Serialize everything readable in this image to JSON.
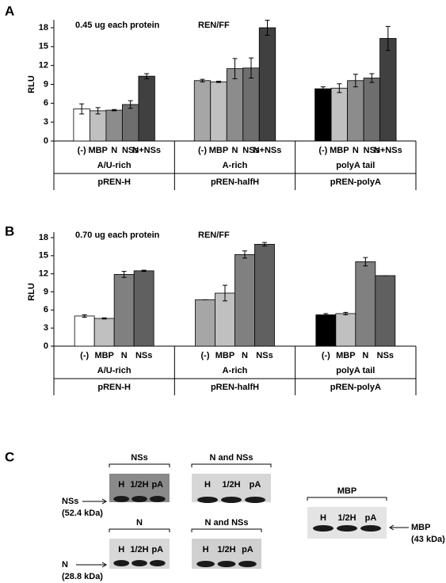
{
  "chart_data": [
    {
      "type": "bar",
      "panel": "A",
      "annotation": "0.45 ug each protein",
      "subtitle": "REN/FF",
      "y_label": "RLU",
      "ylim": [
        0,
        18
      ],
      "yticks": [
        0,
        3,
        6,
        9,
        12,
        15,
        18
      ],
      "groups": [
        {
          "name": "A/U-rich",
          "construct": "pREN-H",
          "categories": [
            "(-)",
            "MBP",
            "N",
            "NSs",
            "N+NSs"
          ],
          "values": [
            5.1,
            4.8,
            4.9,
            5.8,
            10.3
          ],
          "errors": [
            0.8,
            0.5,
            0.1,
            0.6,
            0.4
          ],
          "colors": [
            "#ffffff",
            "#c0c0c0",
            "#8c8c8c",
            "#6e6e6e",
            "#404040"
          ]
        },
        {
          "name": "A-rich",
          "construct": "pREN-halfH",
          "categories": [
            "(-)",
            "MBP",
            "N",
            "NSs",
            "N+NSs"
          ],
          "values": [
            9.6,
            9.4,
            11.5,
            11.6,
            18.0
          ],
          "errors": [
            0.2,
            0.1,
            1.6,
            1.6,
            1.2
          ],
          "colors": [
            "#a6a6a6",
            "#c0c0c0",
            "#8c8c8c",
            "#6e6e6e",
            "#404040"
          ]
        },
        {
          "name": "polyA tail",
          "construct": "pREN-polyA",
          "categories": [
            "(-)",
            "MBP",
            "N",
            "NSs",
            "N+NSs"
          ],
          "values": [
            8.3,
            8.4,
            9.6,
            10.0,
            16.3
          ],
          "errors": [
            0.3,
            0.7,
            1.0,
            0.7,
            1.9
          ],
          "colors": [
            "#000000",
            "#c0c0c0",
            "#8c8c8c",
            "#6e6e6e",
            "#404040"
          ]
        }
      ]
    },
    {
      "type": "bar",
      "panel": "B",
      "annotation": "0.70 ug each protein",
      "subtitle": "REN/FF",
      "y_label": "RLU",
      "ylim": [
        0,
        18
      ],
      "yticks": [
        0,
        3,
        6,
        9,
        12,
        15,
        18
      ],
      "groups": [
        {
          "name": "A/U-rich",
          "construct": "pREN-H",
          "categories": [
            "(-)",
            "MBP",
            "N",
            "NSs"
          ],
          "values": [
            5.0,
            4.6,
            11.9,
            12.5
          ],
          "errors": [
            0.2,
            0.1,
            0.5,
            0.1
          ],
          "colors": [
            "#ffffff",
            "#c0c0c0",
            "#808080",
            "#606060"
          ]
        },
        {
          "name": "A-rich",
          "construct": "pREN-halfH",
          "categories": [
            "(-)",
            "MBP",
            "N",
            "NSs"
          ],
          "values": [
            7.7,
            8.8,
            15.2,
            16.9
          ],
          "errors": [
            0,
            1.3,
            0.6,
            0.3
          ],
          "colors": [
            "#a6a6a6",
            "#c0c0c0",
            "#808080",
            "#606060"
          ]
        },
        {
          "name": "polyA tail",
          "construct": "pREN-polyA",
          "categories": [
            "(-)",
            "MBP",
            "N",
            "NSs"
          ],
          "values": [
            5.2,
            5.4,
            14.0,
            11.7
          ],
          "errors": [
            0.2,
            0.2,
            0.7,
            0
          ],
          "colors": [
            "#000000",
            "#c0c0c0",
            "#808080",
            "#606060"
          ]
        }
      ]
    }
  ],
  "blot_panel": {
    "panel": "C",
    "blots": [
      {
        "title": "NSs",
        "lanes": [
          "H",
          "1/2H",
          "pA"
        ]
      },
      {
        "title": "N and NSs",
        "lanes": [
          "H",
          "1/2H",
          "pA"
        ]
      },
      {
        "title": "N",
        "lanes": [
          "H",
          "1/2H",
          "pA"
        ]
      },
      {
        "title": "N and NSs",
        "lanes": [
          "H",
          "1/2H",
          "pA"
        ]
      },
      {
        "title": "MBP",
        "lanes": [
          "H",
          "1/2H",
          "pA"
        ]
      }
    ],
    "markers": [
      {
        "name": "NSs",
        "size": "(52.4 kDa)"
      },
      {
        "name": "N",
        "size": "(28.8 kDa)"
      },
      {
        "name": "MBP",
        "size": "(43 kDa)"
      }
    ]
  }
}
